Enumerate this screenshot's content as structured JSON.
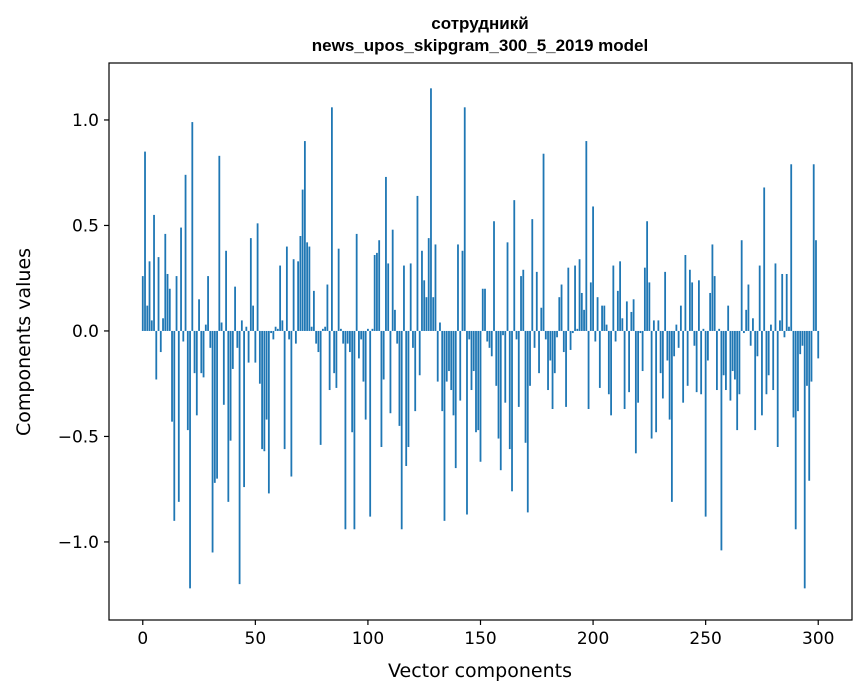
{
  "chart_data": {
    "type": "bar",
    "title": "сотрудникй",
    "subtitle": "news_upos_skipgram_300_5_2019 model",
    "xlabel": "Vector components",
    "ylabel": "Components values",
    "xlim": [
      -15,
      315
    ],
    "ylim": [
      -1.37,
      1.27
    ],
    "xticks": [
      0,
      50,
      100,
      150,
      200,
      250,
      300
    ],
    "xtick_labels": [
      "0",
      "50",
      "100",
      "150",
      "200",
      "250",
      "300"
    ],
    "yticks": [
      -1.0,
      -0.5,
      0.0,
      0.5,
      1.0
    ],
    "ytick_labels": [
      "−1.0",
      "−0.5",
      "0.0",
      "0.5",
      "1.0"
    ],
    "grid": false,
    "bar_color": "#1f77b4",
    "x_start": 0,
    "values": [
      0.26,
      0.85,
      0.12,
      0.33,
      0.05,
      0.55,
      -0.23,
      0.35,
      -0.1,
      0.06,
      0.46,
      0.27,
      0.2,
      -0.43,
      -0.9,
      0.26,
      -0.81,
      0.49,
      -0.05,
      0.74,
      -0.47,
      -1.22,
      0.99,
      -0.2,
      -0.4,
      0.15,
      -0.2,
      -0.22,
      0.03,
      0.26,
      -0.08,
      -1.05,
      -0.72,
      -0.7,
      0.83,
      0.04,
      -0.35,
      0.38,
      -0.81,
      -0.52,
      -0.18,
      0.21,
      -0.08,
      -1.2,
      0.05,
      -0.74,
      0.02,
      -0.15,
      0.44,
      0.12,
      -0.15,
      0.51,
      -0.25,
      -0.56,
      -0.57,
      -0.42,
      -0.77,
      -0.01,
      -0.04,
      0.02,
      0.01,
      0.31,
      0.05,
      -0.56,
      0.4,
      -0.04,
      -0.69,
      0.34,
      -0.06,
      0.33,
      0.45,
      0.67,
      0.9,
      0.42,
      0.4,
      0.02,
      0.19,
      -0.06,
      -0.1,
      -0.54,
      0.01,
      0.02,
      0.22,
      -0.28,
      1.06,
      -0.2,
      -0.27,
      0.39,
      0.01,
      -0.06,
      -0.94,
      -0.06,
      -0.1,
      -0.48,
      -0.94,
      0.46,
      -0.13,
      -0.04,
      -0.24,
      -0.42,
      0.01,
      -0.88,
      0.01,
      0.36,
      0.37,
      0.43,
      -0.55,
      -0.23,
      0.73,
      0.32,
      -0.39,
      0.48,
      0.1,
      -0.06,
      -0.45,
      -0.94,
      0.31,
      -0.64,
      -0.55,
      0.32,
      -0.08,
      -0.38,
      0.64,
      -0.21,
      0.38,
      0.24,
      0.16,
      0.44,
      1.15,
      0.16,
      0.41,
      -0.24,
      0.04,
      -0.38,
      -0.9,
      -0.24,
      -0.19,
      -0.28,
      -0.4,
      -0.65,
      0.41,
      -0.33,
      0.38,
      1.06,
      -0.87,
      -0.04,
      -0.28,
      -0.19,
      -0.48,
      -0.47,
      -0.62,
      0.2,
      0.2,
      -0.05,
      -0.08,
      -0.12,
      0.52,
      -0.26,
      -0.51,
      -0.66,
      -0.02,
      -0.34,
      0.42,
      -0.56,
      -0.76,
      0.62,
      -0.04,
      -0.36,
      0.26,
      0.29,
      -0.53,
      -0.86,
      -0.26,
      0.53,
      -0.08,
      0.28,
      -0.2,
      0.11,
      0.84,
      -0.04,
      -0.28,
      -0.14,
      -0.37,
      -0.2,
      -0.03,
      0.16,
      0.22,
      -0.1,
      -0.36,
      0.3,
      -0.09,
      -0.01,
      0.31,
      0.01,
      0.34,
      0.18,
      0.1,
      0.9,
      -0.37,
      0.23,
      0.59,
      -0.05,
      0.16,
      -0.27,
      0.12,
      0.12,
      0.03,
      -0.3,
      -0.4,
      0.31,
      -0.05,
      0.19,
      0.33,
      0.06,
      -0.37,
      0.14,
      -0.29,
      0.09,
      0.15,
      -0.58,
      -0.34,
      -0.01,
      -0.19,
      0.3,
      0.52,
      0.23,
      -0.51,
      0.05,
      -0.48,
      0.05,
      -0.2,
      -0.32,
      0.28,
      -0.14,
      -0.42,
      -0.81,
      -0.12,
      0.03,
      -0.08,
      0.12,
      -0.34,
      0.36,
      -0.26,
      0.29,
      0.23,
      -0.07,
      -0.29,
      0.24,
      -0.3,
      0.01,
      -0.88,
      -0.14,
      0.18,
      0.41,
      0.26,
      -0.28,
      0.01,
      -1.04,
      -0.21,
      -0.28,
      0.12,
      -0.33,
      -0.19,
      -0.23,
      -0.47,
      -0.3,
      0.43,
      -0.01,
      0.1,
      0.22,
      -0.07,
      0.06,
      -0.47,
      -0.12,
      0.31,
      -0.4,
      0.68,
      -0.3,
      -0.21,
      0.03,
      -0.28,
      0.32,
      -0.55,
      0.05,
      0.27,
      -0.03,
      0.27,
      0.02,
      0.79,
      -0.41,
      -0.94,
      -0.38,
      -0.11,
      -0.07,
      -1.22,
      -0.26,
      -0.71,
      -0.24,
      0.79,
      0.43,
      -0.13
    ]
  }
}
